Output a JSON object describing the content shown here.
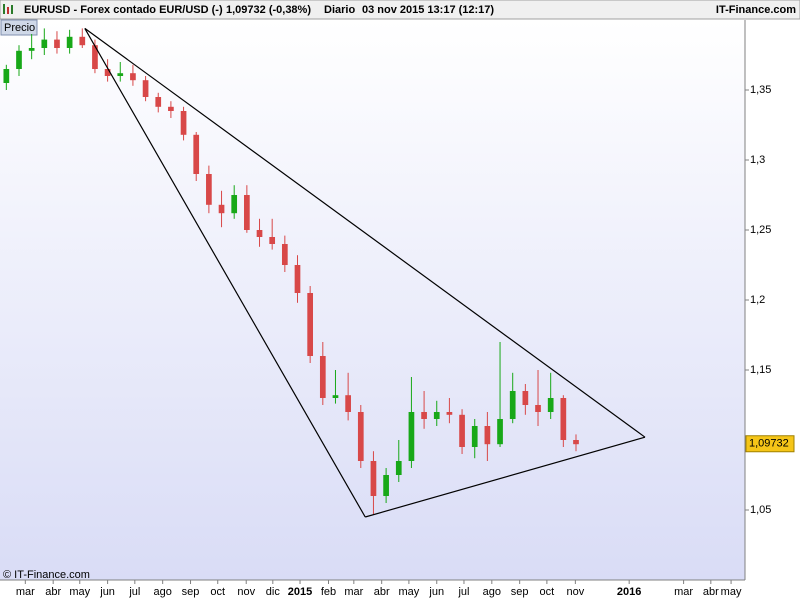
{
  "chart_data": {
    "type": "candlestick",
    "title": "EURUSD - Forex contado EUR/USD (-)",
    "quote": "1,09732 (-0,38%)",
    "period": "Diario",
    "timestamp": "03 nov 2015 13:17 (12:17)",
    "source": "IT-Finance.com",
    "series_label": "Precio",
    "copyright": "© IT-Finance.com",
    "up_color": "#18a818",
    "down_color": "#d84848",
    "x": [
      -3,
      -1,
      1,
      3,
      5,
      7,
      9,
      11,
      13,
      15,
      17,
      19,
      21,
      23,
      25,
      27,
      29,
      31,
      33,
      35,
      37,
      39,
      41,
      43,
      45,
      47,
      49,
      51,
      53,
      55,
      57,
      59,
      61,
      63,
      65,
      67,
      69,
      71,
      73,
      75,
      77,
      79,
      81,
      83,
      85,
      87
    ],
    "open": [
      1.355,
      1.365,
      1.378,
      1.38,
      1.386,
      1.38,
      1.388,
      1.382,
      1.365,
      1.36,
      1.362,
      1.357,
      1.345,
      1.338,
      1.335,
      1.318,
      1.29,
      1.268,
      1.262,
      1.275,
      1.25,
      1.245,
      1.24,
      1.225,
      1.205,
      1.16,
      1.13,
      1.132,
      1.12,
      1.085,
      1.06,
      1.075,
      1.085,
      1.12,
      1.115,
      1.12,
      1.118,
      1.095,
      1.11,
      1.097,
      1.115,
      1.135,
      1.125,
      1.12,
      1.13,
      1.1
    ],
    "high": [
      1.368,
      1.382,
      1.39,
      1.394,
      1.392,
      1.393,
      1.394,
      1.386,
      1.372,
      1.37,
      1.368,
      1.36,
      1.348,
      1.342,
      1.338,
      1.32,
      1.296,
      1.278,
      1.282,
      1.282,
      1.258,
      1.258,
      1.246,
      1.232,
      1.21,
      1.17,
      1.15,
      1.148,
      1.125,
      1.092,
      1.08,
      1.1,
      1.145,
      1.135,
      1.128,
      1.13,
      1.122,
      1.115,
      1.12,
      1.17,
      1.148,
      1.14,
      1.15,
      1.148,
      1.132,
      1.104
    ],
    "low": [
      1.35,
      1.36,
      1.372,
      1.375,
      1.376,
      1.376,
      1.38,
      1.362,
      1.356,
      1.356,
      1.353,
      1.342,
      1.334,
      1.33,
      1.314,
      1.285,
      1.262,
      1.252,
      1.258,
      1.248,
      1.238,
      1.236,
      1.22,
      1.198,
      1.155,
      1.125,
      1.126,
      1.114,
      1.08,
      1.047,
      1.055,
      1.07,
      1.08,
      1.108,
      1.11,
      1.112,
      1.09,
      1.087,
      1.085,
      1.095,
      1.112,
      1.118,
      1.11,
      1.115,
      1.095,
      1.092
    ],
    "close": [
      1.365,
      1.378,
      1.38,
      1.386,
      1.38,
      1.388,
      1.382,
      1.365,
      1.36,
      1.362,
      1.357,
      1.345,
      1.338,
      1.335,
      1.318,
      1.29,
      1.268,
      1.262,
      1.275,
      1.25,
      1.245,
      1.24,
      1.225,
      1.205,
      1.16,
      1.13,
      1.132,
      1.12,
      1.085,
      1.06,
      1.075,
      1.085,
      1.12,
      1.115,
      1.12,
      1.118,
      1.095,
      1.11,
      1.097,
      1.115,
      1.135,
      1.125,
      1.12,
      1.13,
      1.1,
      1.097
    ],
    "trendlines": [
      {
        "x": [
          9.4,
          53.7
        ],
        "y": [
          1.394,
          1.045
        ]
      },
      {
        "x": [
          9.4,
          97.9
        ],
        "y": [
          1.394,
          1.102
        ]
      },
      {
        "x": [
          53.7,
          97.9
        ],
        "y": [
          1.045,
          1.102
        ]
      }
    ],
    "last_price": {
      "value": 1.09732,
      "label": "1,09732"
    },
    "xlim": [
      -4,
      113.7
    ],
    "ylim": [
      1.0,
      1.4
    ],
    "yticks": [
      {
        "value": 1.05,
        "label": "1,05"
      },
      {
        "value": 1.15,
        "label": "1,15"
      },
      {
        "value": 1.2,
        "label": "1,2"
      },
      {
        "value": 1.25,
        "label": "1,25"
      },
      {
        "value": 1.3,
        "label": "1,3"
      },
      {
        "value": 1.35,
        "label": "1,35"
      }
    ],
    "xticks": [
      {
        "value": 0,
        "label": "mar"
      },
      {
        "value": 4.4,
        "label": "abr"
      },
      {
        "value": 8.6,
        "label": "may"
      },
      {
        "value": 13,
        "label": "jun"
      },
      {
        "value": 17.3,
        "label": "jul"
      },
      {
        "value": 21.7,
        "label": "ago"
      },
      {
        "value": 26.1,
        "label": "sep"
      },
      {
        "value": 30.4,
        "label": "oct"
      },
      {
        "value": 34.9,
        "label": "nov"
      },
      {
        "value": 39.1,
        "label": "dic"
      },
      43.4,
      {
        "value": 47.9,
        "label": "feb"
      },
      {
        "value": 51.9,
        "label": "mar"
      },
      {
        "value": 56.3,
        "label": "abr"
      },
      {
        "value": 60.6,
        "label": "may"
      },
      {
        "value": 65,
        "label": "jun"
      },
      {
        "value": 69.3,
        "label": "jul"
      },
      {
        "value": 73.7,
        "label": "ago"
      },
      {
        "value": 78.1,
        "label": "sep"
      },
      {
        "value": 82.4,
        "label": "oct"
      },
      {
        "value": 86.9,
        "label": "nov"
      },
      95.4,
      {
        "value": 104,
        "label": "mar"
      },
      {
        "value": 108.3,
        "label": "abr"
      },
      {
        "value": 111.5,
        "label": "may"
      }
    ],
    "xtick_labels_text": [
      "2015",
      "2016"
    ]
  }
}
